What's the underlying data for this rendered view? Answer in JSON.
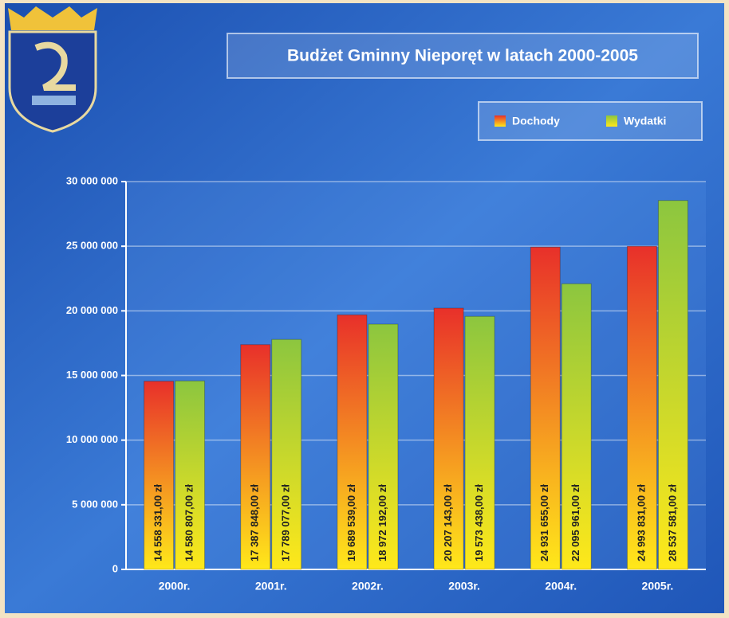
{
  "chart_data": {
    "type": "bar",
    "title": "Budżet Gminny Nieporęt w latach 2000-2005",
    "categories": [
      "2000r.",
      "2001r.",
      "2002r.",
      "2003r.",
      "2004r.",
      "2005r."
    ],
    "series": [
      {
        "name": "Dochody",
        "color": "#e8302a",
        "values": [
          14558331,
          17387848,
          19689539,
          20207143,
          24931655,
          24993831
        ],
        "value_labels": [
          "14 558 331,00 zł",
          "17 387 848,00 zł",
          "19 689 539,00 zł",
          "20 207 143,00 zł",
          "24 931 655,00 zł",
          "24 993 831,00 zł"
        ]
      },
      {
        "name": "Wydatki",
        "color": "#8cc63f",
        "values": [
          14580807,
          17789077,
          18972192,
          19573438,
          22095961,
          28537581
        ],
        "value_labels": [
          "14 580 807,00 zł",
          "17 789 077,00 zł",
          "18 972 192,00 zł",
          "19 573 438,00 zł",
          "22 095 961,00 zł",
          "28 537 581,00 zł"
        ]
      }
    ],
    "ylim": [
      0,
      30000000
    ],
    "yticks": [
      0,
      {
        "value": 5000000,
        "label": "5 000 000"
      },
      {
        "value": 10000000,
        "label": "10 000 000"
      },
      {
        "value": 15000000,
        "label": "15 000 000"
      },
      {
        "value": 20000000,
        "label": "20 000 000"
      },
      {
        "value": 25000000,
        "label": "25 000 000"
      },
      {
        "value": 30000000,
        "label": "30 000 000"
      }
    ],
    "grid": true,
    "legend": "top-right"
  }
}
